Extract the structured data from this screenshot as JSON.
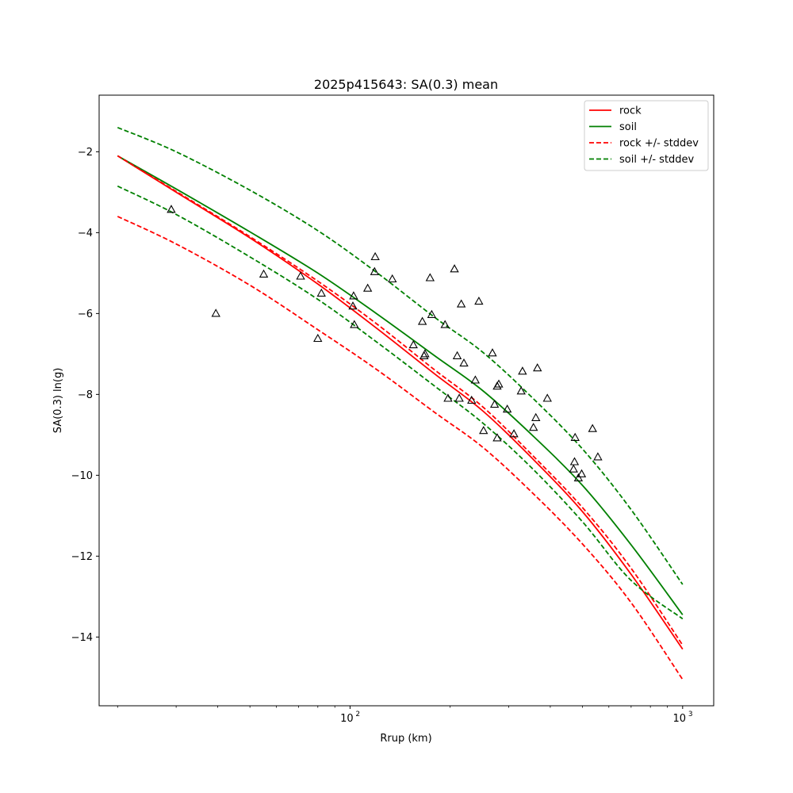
{
  "chart_data": {
    "type": "scatter",
    "title": "2025p415643: SA(0.3) mean",
    "xlabel": "Rrup (km)",
    "ylabel": "SA(0.3) ln(g)",
    "xscale": "log",
    "xlim": [
      17.6,
      1240
    ],
    "ylim": [
      -15.7,
      -0.6
    ],
    "xticks": [
      {
        "value": 100,
        "base": "10",
        "exp": "2"
      },
      {
        "value": 1000,
        "base": "10",
        "exp": "3"
      }
    ],
    "yticks": [
      -14,
      -12,
      -10,
      -8,
      -6,
      -4,
      -2
    ],
    "ytick_labels": [
      "−14",
      "−12",
      "−10",
      "−8",
      "−6",
      "−4",
      "−2"
    ],
    "grid": false,
    "legend_position": "top-right",
    "colors": {
      "rock": "#ff0000",
      "soil": "#008000",
      "points": "#000000"
    },
    "series": [
      {
        "name": "rock",
        "style": "solid",
        "color": "#ff0000",
        "x": [
          20,
          30,
          50,
          80,
          120,
          180,
          250,
          350,
          500,
          700,
          1000
        ],
        "y": [
          -2.1,
          -3.0,
          -4.13,
          -5.27,
          -6.36,
          -7.5,
          -8.4,
          -9.55,
          -10.9,
          -12.45,
          -14.3
        ]
      },
      {
        "name": "soil",
        "style": "solid",
        "color": "#008000",
        "x": [
          20,
          30,
          50,
          80,
          120,
          180,
          250,
          350,
          500,
          700,
          1000
        ],
        "y": [
          -2.1,
          -2.92,
          -3.98,
          -5.0,
          -6.0,
          -7.05,
          -7.9,
          -8.98,
          -10.25,
          -11.72,
          -13.45
        ]
      },
      {
        "name": "rock +/- stddev",
        "style": "dashed",
        "color": "#ff0000",
        "x": [
          20,
          30,
          50,
          80,
          120,
          180,
          250,
          350,
          500,
          700,
          1000
        ],
        "y": [
          -2.1,
          -2.98,
          -4.1,
          -5.2,
          -6.25,
          -7.4,
          -8.3,
          -9.47,
          -10.8,
          -12.3,
          -14.2
        ]
      },
      {
        "name": "rock +/- stddev lower",
        "style": "dashed",
        "color": "#ff0000",
        "x": [
          20,
          30,
          50,
          80,
          120,
          180,
          250,
          350,
          500,
          700,
          1000
        ],
        "y": [
          -3.6,
          -4.28,
          -5.3,
          -6.4,
          -7.38,
          -8.45,
          -9.3,
          -10.4,
          -11.7,
          -13.15,
          -15.05
        ]
      },
      {
        "name": "soil +/- stddev",
        "style": "dashed",
        "color": "#008000",
        "x": [
          20,
          30,
          50,
          80,
          120,
          180,
          250,
          350,
          500,
          700,
          1000
        ],
        "y": [
          -1.4,
          -2.0,
          -2.95,
          -3.95,
          -4.98,
          -6.1,
          -6.95,
          -8.05,
          -9.35,
          -10.85,
          -12.7
        ]
      },
      {
        "name": "soil +/- stddev lower",
        "style": "dashed",
        "color": "#008000",
        "x": [
          20,
          30,
          50,
          80,
          120,
          180,
          250,
          350,
          500,
          700,
          1000
        ],
        "y": [
          -2.85,
          -3.55,
          -4.6,
          -5.65,
          -6.7,
          -7.8,
          -8.7,
          -9.8,
          -11.15,
          -12.6,
          -13.55
        ]
      }
    ],
    "points": {
      "marker": "triangle-open",
      "x": [
        29,
        39.5,
        55,
        71,
        80,
        82,
        102,
        102.5,
        103,
        113,
        118.5,
        119,
        134,
        155,
        165,
        167,
        168,
        174,
        176,
        193,
        197,
        206,
        210,
        213,
        216,
        220,
        232,
        238,
        244,
        252,
        268,
        272,
        277,
        277,
        280,
        297,
        311,
        327,
        330,
        356,
        362,
        366,
        392,
        470,
        473,
        475,
        486,
        497,
        536,
        556
      ],
      "y": [
        -3.43,
        -6.0,
        -5.03,
        -5.08,
        -6.62,
        -5.5,
        -5.82,
        -5.57,
        -6.28,
        -5.38,
        -4.97,
        -4.6,
        -5.15,
        -6.78,
        -6.2,
        -7.05,
        -7.0,
        -5.12,
        -6.03,
        -6.28,
        -8.1,
        -4.9,
        -7.05,
        -8.1,
        -5.77,
        -7.23,
        -8.15,
        -7.65,
        -5.7,
        -8.9,
        -6.98,
        -8.25,
        -7.8,
        -9.08,
        -7.75,
        -8.37,
        -8.98,
        -7.92,
        -7.43,
        -8.82,
        -8.58,
        -7.35,
        -8.1,
        -9.85,
        -9.67,
        -9.07,
        -10.07,
        -9.97,
        -8.85,
        -9.55
      ]
    }
  }
}
